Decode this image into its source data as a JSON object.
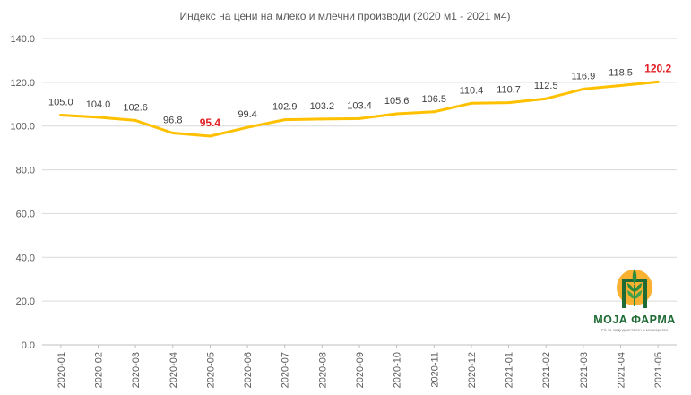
{
  "chart_data": {
    "type": "line",
    "title": "Индекс  на цени на млеко и млечни производи  (2020 м1 - 2021 м4)",
    "xlabel": "",
    "ylabel": "",
    "ylim": [
      0,
      140
    ],
    "yticks": [
      "0.0",
      "20.0",
      "40.0",
      "60.0",
      "80.0",
      "100.0",
      "120.0",
      "140.0"
    ],
    "grid": true,
    "legend": "none",
    "categories": [
      "2020-01",
      "2020-02",
      "2020-03",
      "2020-04",
      "2020-05",
      "2020-06",
      "2020-07",
      "2020-08",
      "2020-09",
      "2020-10",
      "2020-11",
      "2020-12",
      "2021-01",
      "2021-02",
      "2021-03",
      "2021-04",
      "2021-05"
    ],
    "series": [
      {
        "values": [
          105.0,
          104.0,
          102.6,
          96.8,
          95.4,
          99.4,
          102.9,
          103.2,
          103.4,
          105.6,
          106.5,
          110.4,
          110.7,
          112.5,
          116.9,
          118.5,
          120.2
        ],
        "labels": [
          "105.0",
          "104.0",
          "102.6",
          "96.8",
          "95.4",
          "99.4",
          "102.9",
          "103.2",
          "103.4",
          "105.6",
          "106.5",
          "110.4",
          "110.7",
          "112.5",
          "116.9",
          "118.5",
          "120.2"
        ],
        "color": "#ffc000"
      }
    ],
    "highlighted_labels": [
      4,
      16
    ],
    "highlight_color": "#e31e24"
  },
  "logo": {
    "brand": "МОЈА ФАРМА",
    "tagline": "Сè за земјоделството и млекарство"
  }
}
